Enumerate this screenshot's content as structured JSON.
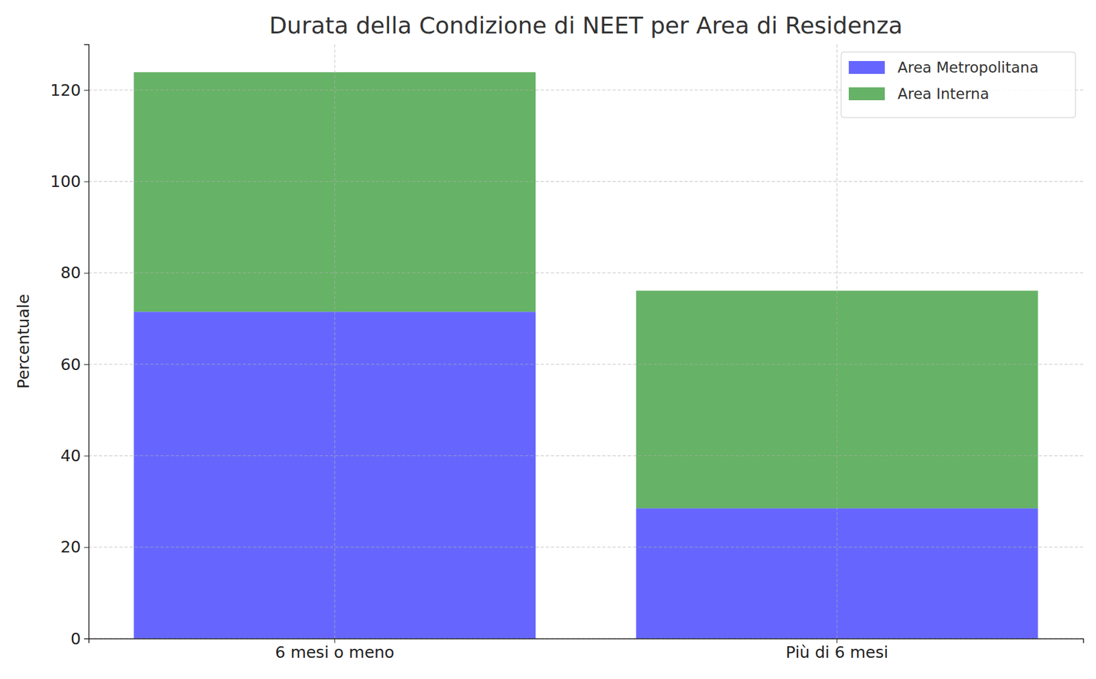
{
  "chart_data": {
    "type": "bar",
    "stacked": true,
    "title": "Durata della Condizione di NEET per Area di Residenza",
    "y_label": "Percentuale",
    "categories": [
      "6 mesi o meno",
      "Più di 6 mesi"
    ],
    "series": [
      {
        "name": "Area Metropolitana",
        "color": "#6666ff",
        "values": [
          71.5,
          28.5
        ]
      },
      {
        "name": "Area Interna",
        "color": "#66b266",
        "values": [
          52.4,
          47.6
        ]
      }
    ],
    "ylim": [
      0,
      130
    ],
    "yticks": [
      0,
      20,
      40,
      60,
      80,
      100,
      120
    ],
    "grid": true,
    "legend": "upper right"
  }
}
